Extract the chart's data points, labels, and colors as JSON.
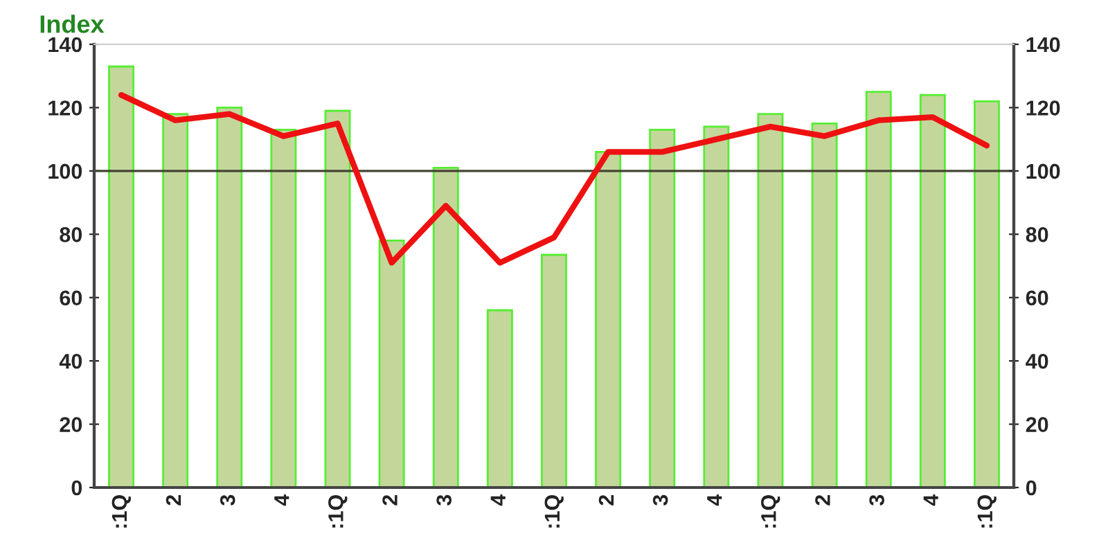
{
  "chart_data": {
    "type": "bar",
    "title": "Index",
    "categories": [
      ":1Q",
      "2",
      "3",
      "4",
      ":1Q",
      "2",
      "3",
      "4",
      ":1Q",
      "2",
      "3",
      "4",
      ":1Q",
      "2",
      "3",
      "4",
      ":1Q"
    ],
    "series": [
      {
        "color": "#c4d79b",
        "values": [
          133,
          118,
          120,
          113,
          119,
          78,
          101,
          56,
          73.5,
          106,
          113,
          114,
          118,
          115,
          125,
          124,
          122
        ]
      },
      {
        "type": "line",
        "color": "#ee1111",
        "values": [
          124,
          116,
          118,
          111,
          115,
          71,
          89,
          71,
          79,
          106,
          106,
          110,
          114,
          111,
          116,
          117,
          108
        ]
      }
    ],
    "ylim": [
      0,
      140
    ],
    "yticks": [
      0,
      20,
      40,
      60,
      80,
      100,
      120,
      140
    ],
    "y2lim": [
      0,
      140
    ],
    "y2ticks": [
      0,
      20,
      40,
      60,
      80,
      100,
      120,
      140
    ],
    "ref_lines": [
      {
        "axis": "y",
        "value": 100,
        "color": "#444433"
      }
    ],
    "grid": false,
    "legend": false
  }
}
